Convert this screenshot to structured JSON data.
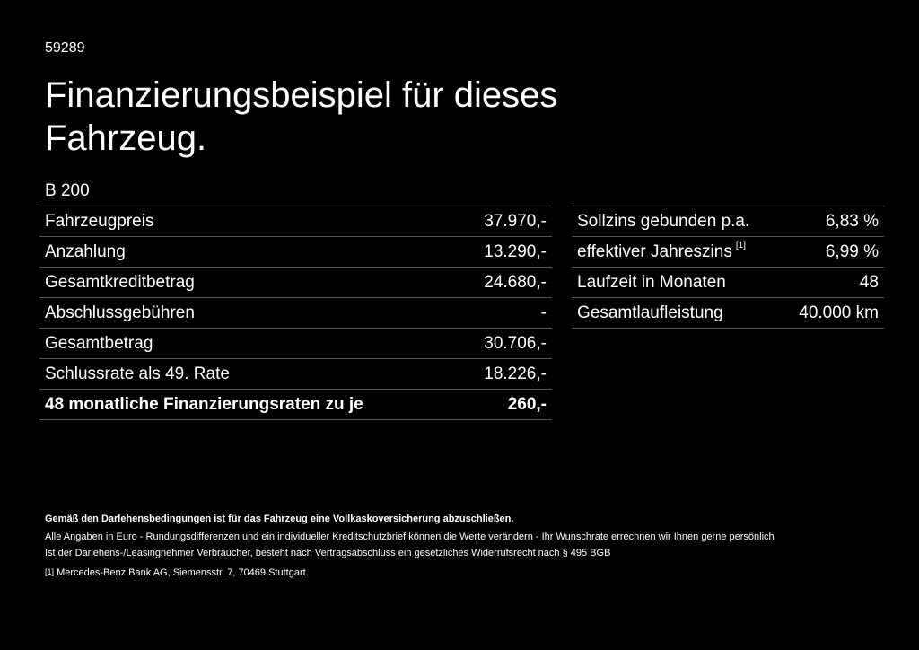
{
  "header": {
    "id": "59289",
    "title_line1": "Finanzierungsbeispiel für dieses",
    "title_line2": "Fahrzeug.",
    "model": "B 200"
  },
  "left_table": {
    "rows": [
      [
        "Fahrzeugpreis",
        "37.970,-"
      ],
      [
        "Anzahlung",
        "13.290,-"
      ],
      [
        "Gesamtkreditbetrag",
        "24.680,-"
      ],
      [
        "Abschlussgebühren",
        "-"
      ],
      [
        "Gesamtbetrag",
        "30.706,-"
      ],
      [
        "Schlussrate als 49. Rate",
        "18.226,-"
      ],
      [
        "48 monatliche Finanzierungsraten zu je",
        "260,-"
      ]
    ]
  },
  "right_table": {
    "rows": [
      [
        "Sollzins gebunden p.a.",
        "6,83 %"
      ],
      [
        "effektiver Jahreszins",
        "6,99 %"
      ],
      [
        "Laufzeit in Monaten",
        "48"
      ],
      [
        "Gesamtlaufleistung",
        "40.000 km"
      ]
    ],
    "note_marker": "[1]"
  },
  "footer": {
    "bold_note": "Gemäß den Darlehensbedingungen ist für das Fahrzeug eine Vollkaskoversicherung abzuschließen.",
    "lines": [
      "Alle Angaben in Euro - Rundungsdifferenzen und ein individueller Kreditschutzbrief können die Werte verändern - Ihr Wunschrate errechnen wir Ihnen gerne persönlich",
      "Ist der Darlehens-/Leasingnehmer Verbraucher, besteht nach Vertragsabschluss ein gesetzliches Widerrufsrecht nach § 495 BGB"
    ],
    "footnote_marker": "[1]",
    "footnote_text": "Mercedes-Benz Bank AG, Siemensstr. 7, 70469 Stuttgart."
  }
}
